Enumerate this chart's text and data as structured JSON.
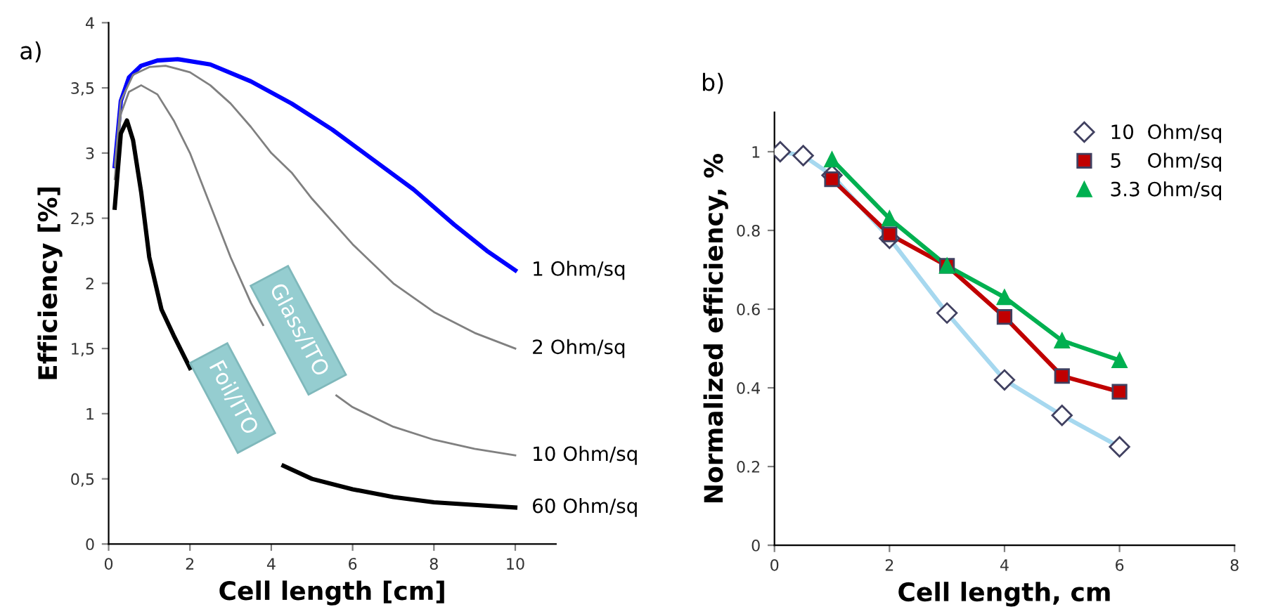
{
  "chart_data": [
    {
      "type": "line",
      "title": "a)",
      "xlabel": "Cell length [cm]",
      "ylabel": "Efficiency [%]",
      "xlim": [
        0,
        11
      ],
      "ylim": [
        0,
        4
      ],
      "xticks": [
        0,
        2,
        4,
        6,
        8,
        10
      ],
      "yticks": [
        0,
        {
          "value": 0.5,
          "label": "0,5"
        },
        1,
        {
          "value": 1.5,
          "label": "1,5"
        },
        2,
        {
          "value": 2.5,
          "label": "2,5"
        },
        3,
        {
          "value": 3.5,
          "label": "3,5"
        },
        4
      ],
      "grid": false,
      "legend": false,
      "marker": "none",
      "line_style": "solid",
      "annotations": [
        "Glass/ITO",
        "Foil/ITO"
      ],
      "series": [
        {
          "name": "1 Ohm/sq",
          "color": "#0000ff",
          "x": [
            0.15,
            0.3,
            0.5,
            0.8,
            1.2,
            1.7,
            2.5,
            3.5,
            4.5,
            5.5,
            6.5,
            7.5,
            8.5,
            9.3,
            10
          ],
          "values": [
            2.9,
            3.4,
            3.58,
            3.67,
            3.71,
            3.72,
            3.68,
            3.55,
            3.38,
            3.18,
            2.95,
            2.72,
            2.45,
            2.25,
            2.1
          ]
        },
        {
          "name": "2 Ohm/sq",
          "color": "#808080",
          "x": [
            0.15,
            0.3,
            0.6,
            1.0,
            1.4,
            2,
            2.5,
            3,
            3.5,
            4,
            4.5,
            5,
            6,
            7,
            8,
            9,
            10
          ],
          "values": [
            2.9,
            3.4,
            3.6,
            3.66,
            3.67,
            3.62,
            3.52,
            3.38,
            3.2,
            3.0,
            2.85,
            2.65,
            2.3,
            2.0,
            1.78,
            1.62,
            1.5
          ]
        },
        {
          "name": "10 Ohm/sq",
          "color": "#808080",
          "x": [
            0.15,
            0.3,
            0.5,
            0.8,
            1.2,
            1.6,
            2,
            2.5,
            3,
            3.5,
            3.8,
            4,
            5,
            5.6,
            6,
            7,
            8,
            9,
            10
          ],
          "values": [
            2.8,
            3.3,
            3.47,
            3.52,
            3.45,
            3.25,
            3.0,
            2.6,
            2.2,
            1.85,
            1.68,
            null,
            null,
            1.14,
            1.05,
            0.9,
            0.8,
            0.73,
            0.68
          ]
        },
        {
          "name": "60 Ohm/sq",
          "color": "#000000",
          "x": [
            0.15,
            0.3,
            0.45,
            0.6,
            0.8,
            1,
            1.3,
            1.6,
            2,
            2.5,
            3,
            3.5,
            4,
            4.3,
            5,
            6,
            7,
            8,
            9,
            10
          ],
          "values": [
            2.58,
            3.15,
            3.25,
            3.1,
            2.7,
            2.2,
            1.8,
            1.6,
            1.35,
            null,
            null,
            null,
            null,
            0.6,
            0.5,
            0.42,
            0.36,
            0.32,
            0.3,
            0.28
          ]
        }
      ]
    },
    {
      "type": "line",
      "title": "b)",
      "xlabel": "Cell length, cm",
      "ylabel": "Normalized efficiency, %",
      "xlim": [
        0,
        8
      ],
      "ylim": [
        0,
        1.1
      ],
      "xticks": [
        0,
        2,
        4,
        6,
        8
      ],
      "yticks": [
        0,
        0.2,
        0.4,
        0.6,
        0.8,
        1
      ],
      "grid": false,
      "legend": "top right",
      "line_style": "solid",
      "series": [
        {
          "name": "10  Ohm/sq",
          "color": "#a6d8ef",
          "marker": "diamond",
          "x": [
            0.1,
            0.5,
            1,
            2,
            3,
            4,
            5,
            6
          ],
          "values": [
            1.0,
            0.99,
            0.94,
            0.78,
            0.59,
            0.42,
            0.33,
            0.25
          ]
        },
        {
          "name": "5    Ohm/sq",
          "color": "#c00000",
          "marker": "square",
          "x": [
            1,
            2,
            3,
            4,
            5,
            6
          ],
          "values": [
            0.93,
            0.79,
            0.71,
            0.58,
            0.43,
            0.39
          ]
        },
        {
          "name": "3.3 Ohm/sq",
          "color": "#00b050",
          "marker": "triangle",
          "x": [
            1,
            2,
            3,
            4,
            5,
            6
          ],
          "values": [
            0.98,
            0.83,
            0.71,
            0.63,
            0.52,
            0.47
          ]
        }
      ]
    }
  ]
}
